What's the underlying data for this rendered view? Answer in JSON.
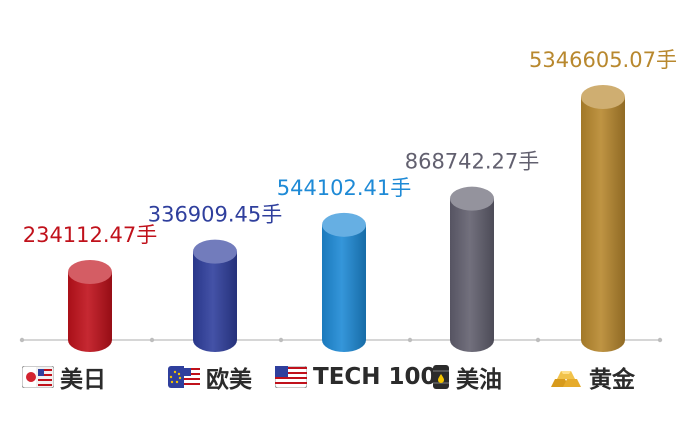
{
  "chart_data": {
    "type": "bar",
    "categories": [
      "美日",
      "欧美",
      "TECH 100",
      "美油",
      "黄金"
    ],
    "values": [
      234112.47,
      336909.45,
      544102.41,
      868742.27,
      5346605.07
    ],
    "value_labels": [
      "234112.47手",
      "336909.45手",
      "544102.41手",
      "868742.27手",
      "5346605.07手"
    ],
    "colors": [
      "#c0111b",
      "#2f3f9d",
      "#1e8ad6",
      "#62606f",
      "#b8882e"
    ],
    "icons": [
      "flag-jp-us-icon",
      "flag-eu-us-icon",
      "flag-us-icon",
      "oil-barrel-icon",
      "gold-bars-icon"
    ],
    "grid": false
  }
}
